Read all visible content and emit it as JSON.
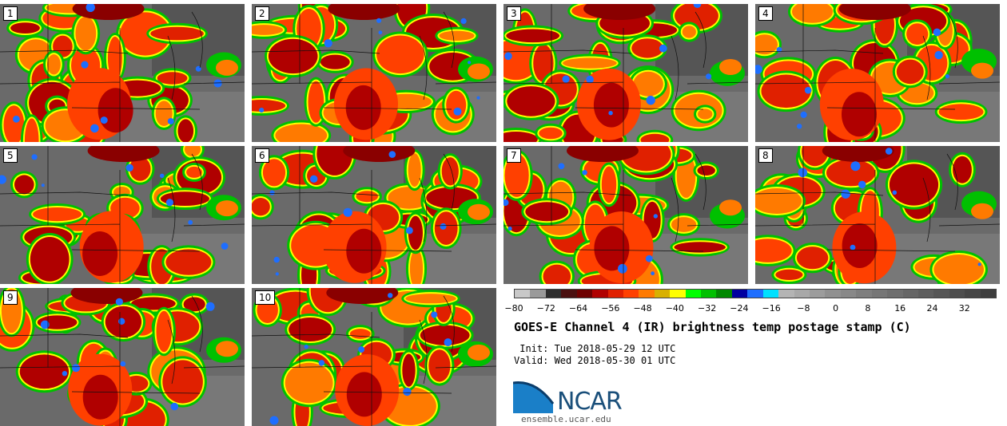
{
  "panels": [
    {
      "label": "1"
    },
    {
      "label": "2"
    },
    {
      "label": "3"
    },
    {
      "label": "4"
    },
    {
      "label": "5"
    },
    {
      "label": "6"
    },
    {
      "label": "7"
    },
    {
      "label": "8"
    },
    {
      "label": "9"
    },
    {
      "label": "10"
    }
  ],
  "colorbar": {
    "colors": [
      "#c8c8c8",
      "#9a9a9a",
      "#2e2e2e",
      "#4a1010",
      "#6e0000",
      "#b00000",
      "#e02000",
      "#ff4000",
      "#ff7a00",
      "#d8b000",
      "#ffff00",
      "#00ff00",
      "#00c000",
      "#008800",
      "#0000a0",
      "#1e6eff",
      "#00e0ff",
      "#b4b4b4",
      "#a8a8a8",
      "#9c9c9c",
      "#909090",
      "#888888",
      "#7e7e7e",
      "#767676",
      "#6e6e6e",
      "#666666",
      "#5e5e5e",
      "#565656",
      "#4e4e4e",
      "#464646",
      "#3e3e3e"
    ],
    "ticks": [
      "−80",
      "−72",
      "−64",
      "−56",
      "−48",
      "−40",
      "−32",
      "−24",
      "−16",
      "−8",
      "0",
      "8",
      "16",
      "24",
      "32"
    ]
  },
  "title": "GOES-E Channel 4 (IR) brightness temp postage stamp (C)",
  "init": " Init: Tue 2018-05-29 12 UTC",
  "valid": "Valid: Wed 2018-05-30 01 UTC",
  "logo": {
    "text": "NCAR",
    "site": "ensemble.ucar.edu"
  }
}
